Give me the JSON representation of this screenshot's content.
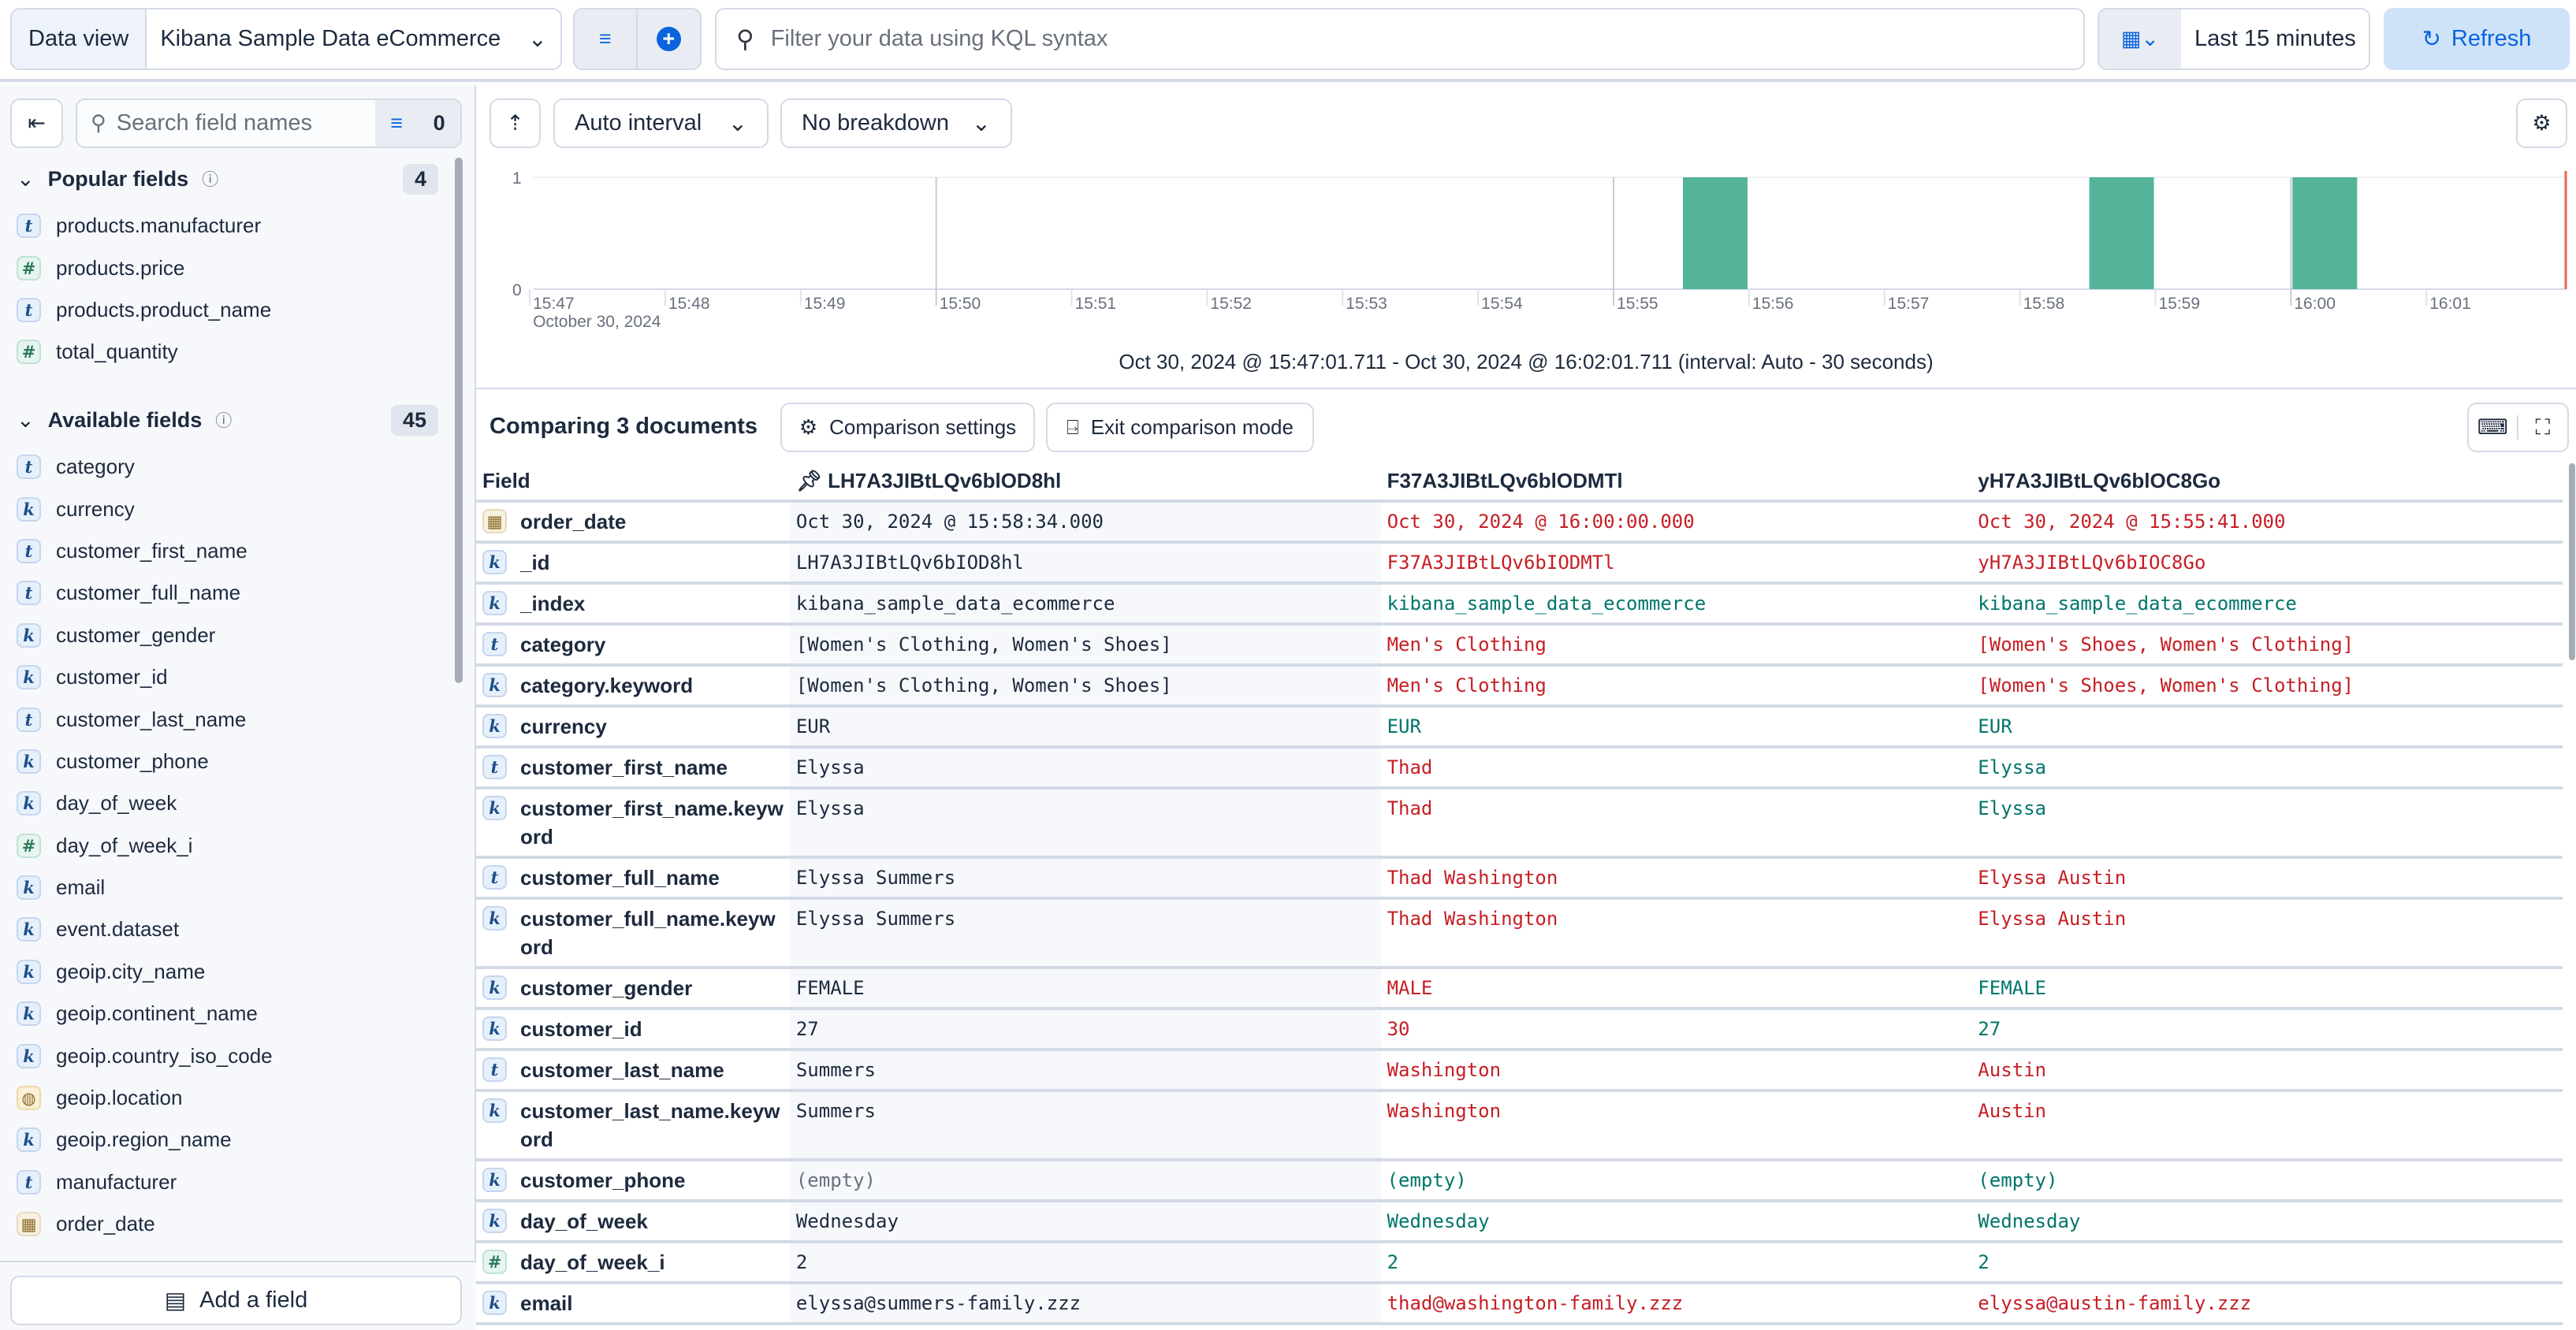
{
  "topbar": {
    "data_view_label": "Data view",
    "data_view_value": "Kibana Sample Data eCommerce",
    "query_placeholder": "Filter your data using KQL syntax",
    "time_range": "Last 15 minutes",
    "refresh_label": "Refresh"
  },
  "sidebar": {
    "search_placeholder": "Search field names",
    "filter_count": "0",
    "popular": {
      "title": "Popular fields",
      "count": "4",
      "items": [
        {
          "type": "t",
          "name": "products.manufacturer"
        },
        {
          "type": "#",
          "name": "products.price"
        },
        {
          "type": "t",
          "name": "products.product_name"
        },
        {
          "type": "#",
          "name": "total_quantity"
        }
      ]
    },
    "available": {
      "title": "Available fields",
      "count": "45",
      "items": [
        {
          "type": "t",
          "name": "category"
        },
        {
          "type": "k",
          "name": "currency"
        },
        {
          "type": "t",
          "name": "customer_first_name"
        },
        {
          "type": "t",
          "name": "customer_full_name"
        },
        {
          "type": "k",
          "name": "customer_gender"
        },
        {
          "type": "k",
          "name": "customer_id"
        },
        {
          "type": "t",
          "name": "customer_last_name"
        },
        {
          "type": "k",
          "name": "customer_phone"
        },
        {
          "type": "k",
          "name": "day_of_week"
        },
        {
          "type": "#",
          "name": "day_of_week_i"
        },
        {
          "type": "k",
          "name": "email"
        },
        {
          "type": "k",
          "name": "event.dataset"
        },
        {
          "type": "k",
          "name": "geoip.city_name"
        },
        {
          "type": "k",
          "name": "geoip.continent_name"
        },
        {
          "type": "k",
          "name": "geoip.country_iso_code"
        },
        {
          "type": "geo",
          "name": "geoip.location"
        },
        {
          "type": "k",
          "name": "geoip.region_name"
        },
        {
          "type": "t",
          "name": "manufacturer"
        },
        {
          "type": "date",
          "name": "order_date"
        }
      ]
    },
    "add_field_label": "Add a field"
  },
  "histogram": {
    "interval_label": "Auto interval",
    "breakdown_label": "No breakdown",
    "caption": "Oct 30, 2024 @ 15:47:01.711 - Oct 30, 2024 @ 16:02:01.711 (interval: Auto - 30 seconds)",
    "chart_data": {
      "type": "bar",
      "y_ticks": [
        "0",
        "1"
      ],
      "ylim": [
        0,
        1
      ],
      "x_ticks": [
        "15:47",
        "15:48",
        "15:49",
        "15:50",
        "15:51",
        "15:52",
        "15:53",
        "15:54",
        "15:55",
        "15:56",
        "15:57",
        "15:58",
        "15:59",
        "16:00",
        "16:01"
      ],
      "x_sublabel": "October 30, 2024",
      "xlim": [
        "15:47:01.711",
        "16:02:01.711"
      ],
      "bar_color": "#54b399",
      "bars": [
        {
          "start": "15:55:30",
          "count": 1
        },
        {
          "start": "15:58:30",
          "count": 1
        },
        {
          "start": "16:00:00",
          "count": 1
        }
      ]
    }
  },
  "comparison": {
    "title": "Comparing 3 documents",
    "settings_label": "Comparison settings",
    "exit_label": "Exit comparison mode",
    "field_header": "Field",
    "docs": [
      "LH7A3JIBtLQv6blOD8hl",
      "F37A3JIBtLQv6blODMTl",
      "yH7A3JIBtLQv6blOC8Go"
    ],
    "rows": [
      {
        "type": "date",
        "field": "order_date",
        "values": [
          "Oct 30, 2024 @ 15:58:34.000",
          "Oct 30, 2024 @ 16:00:00.000",
          "Oct 30, 2024 @ 15:55:41.000"
        ]
      },
      {
        "type": "k",
        "field": "_id",
        "values": [
          "LH7A3JIBtLQv6bIOD8hl",
          "F37A3JIBtLQv6bIODMTl",
          "yH7A3JIBtLQv6bIOC8Go"
        ]
      },
      {
        "type": "k",
        "field": "_index",
        "values": [
          "kibana_sample_data_ecommerce",
          "kibana_sample_data_ecommerce",
          "kibana_sample_data_ecommerce"
        ]
      },
      {
        "type": "t",
        "field": "category",
        "values": [
          "[Women's Clothing, Women's Shoes]",
          "Men's Clothing",
          "[Women's Shoes, Women's Clothing]"
        ]
      },
      {
        "type": "k",
        "field": "category.keyword",
        "values": [
          "[Women's Clothing, Women's Shoes]",
          "Men's Clothing",
          "[Women's Shoes, Women's Clothing]"
        ]
      },
      {
        "type": "k",
        "field": "currency",
        "values": [
          "EUR",
          "EUR",
          "EUR"
        ]
      },
      {
        "type": "t",
        "field": "customer_first_name",
        "values": [
          "Elyssa",
          "Thad",
          "Elyssa"
        ]
      },
      {
        "type": "k",
        "field": "customer_first_name.keyword",
        "values": [
          "Elyssa",
          "Thad",
          "Elyssa"
        ]
      },
      {
        "type": "t",
        "field": "customer_full_name",
        "values": [
          "Elyssa Summers",
          "Thad Washington",
          "Elyssa Austin"
        ]
      },
      {
        "type": "k",
        "field": "customer_full_name.keyword",
        "values": [
          "Elyssa Summers",
          "Thad Washington",
          "Elyssa Austin"
        ]
      },
      {
        "type": "k",
        "field": "customer_gender",
        "values": [
          "FEMALE",
          "MALE",
          "FEMALE"
        ]
      },
      {
        "type": "k",
        "field": "customer_id",
        "values": [
          "27",
          "30",
          "27"
        ]
      },
      {
        "type": "t",
        "field": "customer_last_name",
        "values": [
          "Summers",
          "Washington",
          "Austin"
        ]
      },
      {
        "type": "k",
        "field": "customer_last_name.keyword",
        "values": [
          "Summers",
          "Washington",
          "Austin"
        ]
      },
      {
        "type": "k",
        "field": "customer_phone",
        "values": [
          "(empty)",
          "(empty)",
          "(empty)"
        ]
      },
      {
        "type": "k",
        "field": "day_of_week",
        "values": [
          "Wednesday",
          "Wednesday",
          "Wednesday"
        ]
      },
      {
        "type": "#",
        "field": "day_of_week_i",
        "values": [
          "2",
          "2",
          "2"
        ]
      },
      {
        "type": "k",
        "field": "email",
        "values": [
          "elyssa@summers-family.zzz",
          "thad@washington-family.zzz",
          "elyssa@austin-family.zzz"
        ]
      }
    ]
  },
  "colors": {
    "same": "#00766b",
    "different": "#c61e25",
    "accent": "#0b64dd"
  }
}
